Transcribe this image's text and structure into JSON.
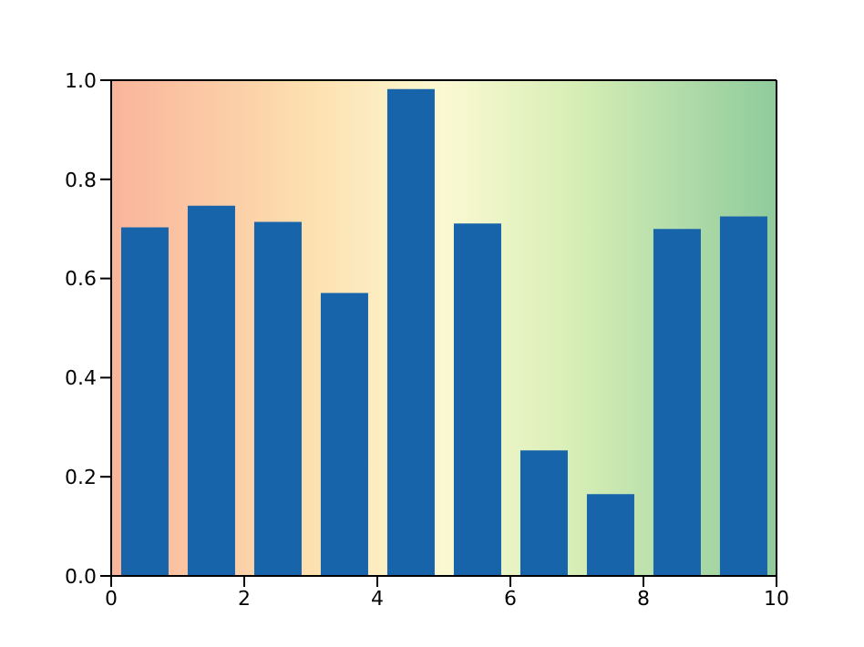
{
  "chart_data": {
    "type": "bar",
    "x": [
      0.5,
      1.5,
      2.5,
      3.5,
      4.5,
      5.5,
      6.5,
      7.5,
      8.5,
      9.5
    ],
    "values": [
      0.703,
      0.747,
      0.714,
      0.571,
      0.982,
      0.711,
      0.253,
      0.165,
      0.7,
      0.725
    ],
    "color": "#1764ab",
    "xlim": [
      0,
      10
    ],
    "xticks": [
      0,
      2,
      4,
      6,
      8,
      10
    ],
    "ylim": [
      0,
      1
    ],
    "yticks": [
      {
        "value": 0,
        "label": "0.0"
      },
      {
        "value": 0.2,
        "label": "0.2"
      },
      {
        "value": 0.4,
        "label": "0.4"
      },
      {
        "value": 0.6,
        "label": "0.6"
      },
      {
        "value": 0.8,
        "label": "0.8"
      },
      {
        "value": 1,
        "label": "1.0"
      }
    ]
  }
}
